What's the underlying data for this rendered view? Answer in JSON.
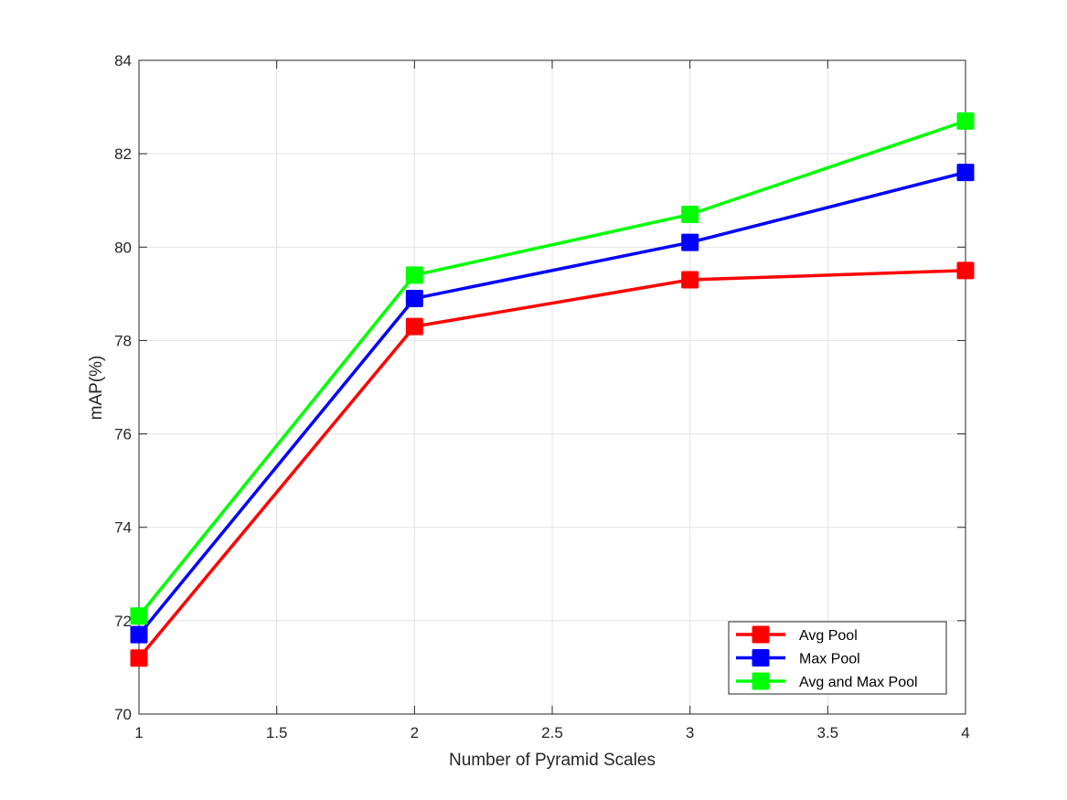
{
  "chart_data": {
    "type": "line",
    "title": "",
    "xlabel": "Number of Pyramid Scales",
    "ylabel": "mAP(%)",
    "xlim": [
      1,
      4
    ],
    "ylim": [
      70,
      84
    ],
    "xticks": [
      1,
      1.5,
      2,
      2.5,
      3,
      3.5,
      4
    ],
    "xtick_labels": [
      "1",
      "1.5",
      "2",
      "2.5",
      "3",
      "3.5",
      "4"
    ],
    "yticks": [
      70,
      72,
      74,
      76,
      78,
      80,
      82,
      84
    ],
    "ytick_labels": [
      "70",
      "72",
      "74",
      "76",
      "78",
      "80",
      "82",
      "84"
    ],
    "grid": true,
    "legend_position": "bottom-right",
    "x": [
      1,
      2,
      3,
      4
    ],
    "series": [
      {
        "name": "Avg Pool",
        "color": "#ff0000",
        "values": [
          71.2,
          78.3,
          79.3,
          79.5
        ]
      },
      {
        "name": "Max Pool",
        "color": "#0000ff",
        "values": [
          71.7,
          78.9,
          80.1,
          81.6
        ]
      },
      {
        "name": "Avg and Max Pool",
        "color": "#00ff00",
        "values": [
          72.1,
          79.4,
          80.7,
          82.7
        ]
      }
    ]
  }
}
